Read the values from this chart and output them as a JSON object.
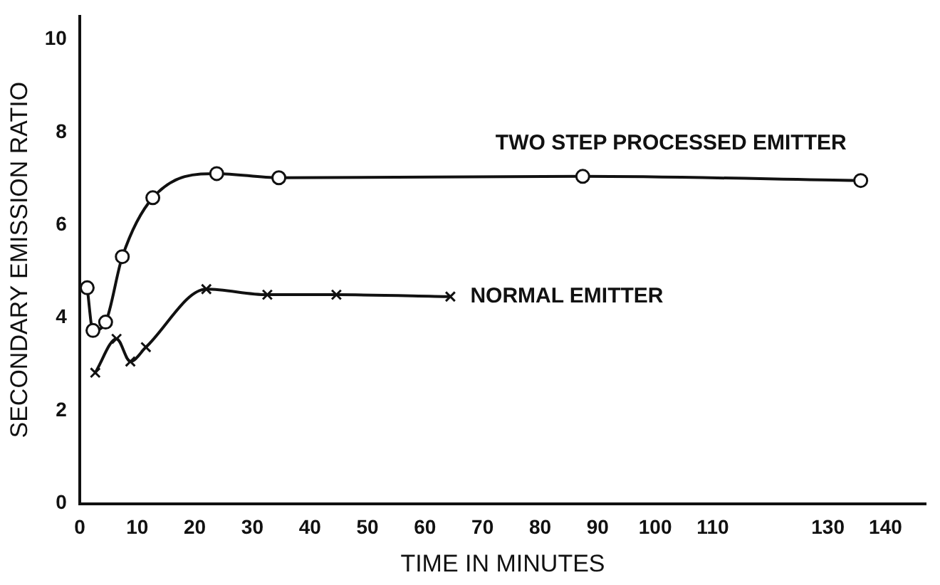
{
  "chart_data": {
    "type": "line",
    "xlabel": "TIME IN MINUTES",
    "ylabel": "SECONDARY EMISSION RATIO",
    "xlim": [
      0,
      147
    ],
    "xticks": [
      0,
      10,
      20,
      30,
      40,
      50,
      60,
      70,
      80,
      90,
      100,
      110,
      130,
      140
    ],
    "ylim": [
      0,
      10.5
    ],
    "yticks": [
      0,
      2,
      4,
      6,
      8,
      10
    ],
    "grid": false,
    "legend": false,
    "line_style": "solid",
    "series": [
      {
        "name": "TWO STEP PROCESSED EMITTER",
        "color": "#111111",
        "marker": "circle",
        "x": [
          1.3,
          2.3,
          4.5,
          7.4,
          12.7,
          23.8,
          34.6,
          87.4,
          135.7
        ],
        "values": [
          4.65,
          3.73,
          3.91,
          5.32,
          6.59,
          7.11,
          7.02,
          7.05,
          6.96
        ]
      },
      {
        "name": "NORMAL EMITTER",
        "color": "#111111",
        "marker": "cross",
        "x": [
          2.7,
          6.4,
          8.8,
          11.5,
          22,
          32.6,
          44.6,
          64.4
        ],
        "values": [
          2.82,
          3.55,
          3.06,
          3.37,
          4.62,
          4.5,
          4.5,
          4.46
        ]
      }
    ]
  }
}
